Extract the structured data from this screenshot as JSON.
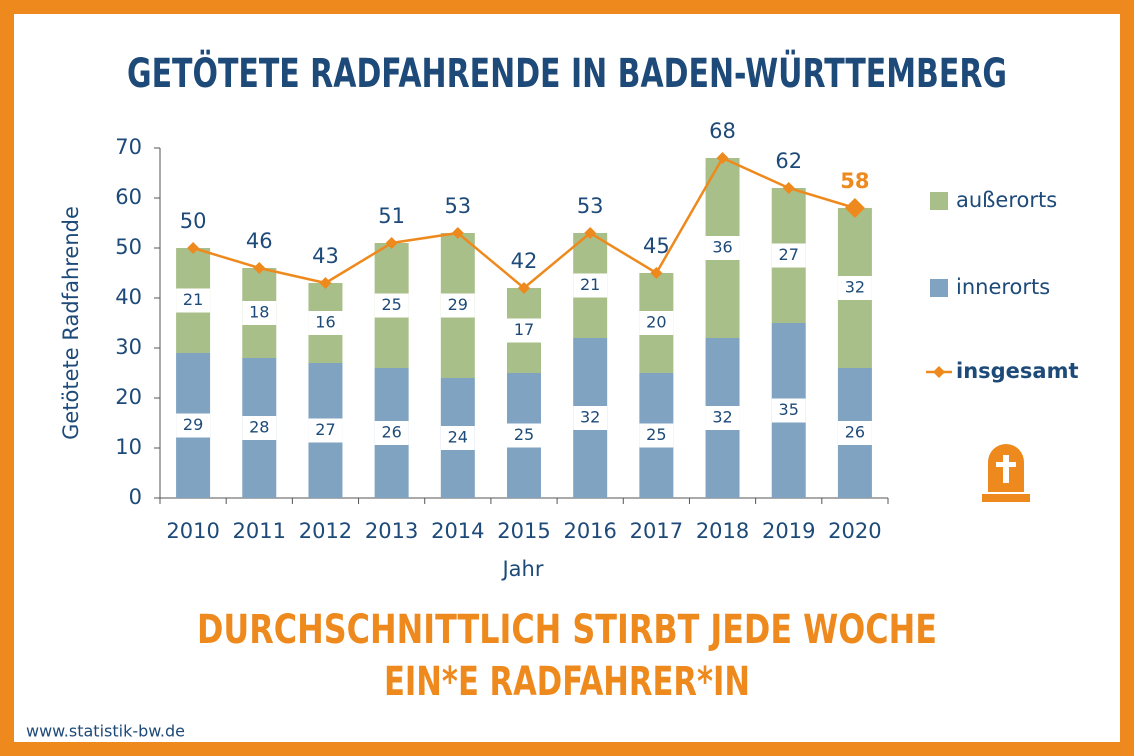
{
  "chart_data": {
    "type": "bar",
    "stacked": true,
    "title": "GETÖTETE RADFAHRENDE IN BADEN-WÜRTTEMBERG",
    "x_label": "Jahr",
    "y_label": "Getötete Radfahrende",
    "categories": [
      "2010",
      "2011",
      "2012",
      "2013",
      "2014",
      "2015",
      "2016",
      "2017",
      "2018",
      "2019",
      "2020"
    ],
    "series": [
      {
        "name": "innerorts",
        "color": "#7fa3c0",
        "values": [
          29,
          28,
          27,
          26,
          24,
          25,
          32,
          25,
          32,
          35,
          26
        ]
      },
      {
        "name": "außerorts",
        "color": "#a8bf8a",
        "values": [
          21,
          18,
          16,
          25,
          29,
          17,
          21,
          20,
          36,
          27,
          32
        ]
      },
      {
        "name": "insgesamt",
        "type": "line",
        "color": "#ee8a1d",
        "values": [
          50,
          46,
          43,
          51,
          53,
          42,
          53,
          45,
          68,
          62,
          58
        ]
      }
    ],
    "ylim": [
      0,
      70
    ],
    "yticks": [
      0,
      10,
      20,
      30,
      40,
      50,
      60,
      70
    ],
    "grid": false,
    "legend": "right",
    "annotations": [
      "DURCHSCHNITTLICH STIRBT JEDE WOCHE",
      "EIN*E RADFAHRER*IN"
    ],
    "source": "www.statistik-bw.de"
  }
}
